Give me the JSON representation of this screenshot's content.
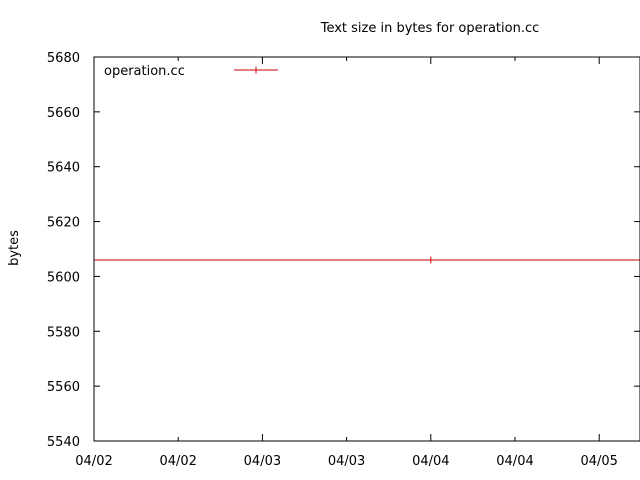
{
  "chart_data": {
    "type": "line",
    "title": "Text size in bytes for operation.cc",
    "xlabel": "",
    "ylabel": "bytes",
    "ylim": [
      5540,
      5680
    ],
    "yticks": [
      "5540",
      "5560",
      "5580",
      "5600",
      "5620",
      "5640",
      "5660",
      "5680"
    ],
    "xtick_labels": [
      "04/02",
      "04/02",
      "04/03",
      "04/03",
      "04/04",
      "04/04",
      "04/05"
    ],
    "legend_position": "top-left",
    "grid": false,
    "series": [
      {
        "name": "operation.cc",
        "color": "#cc0000",
        "x": [
          "04/03",
          "04/04",
          "04/05"
        ],
        "values": [
          5606,
          5606,
          5606
        ]
      }
    ]
  }
}
